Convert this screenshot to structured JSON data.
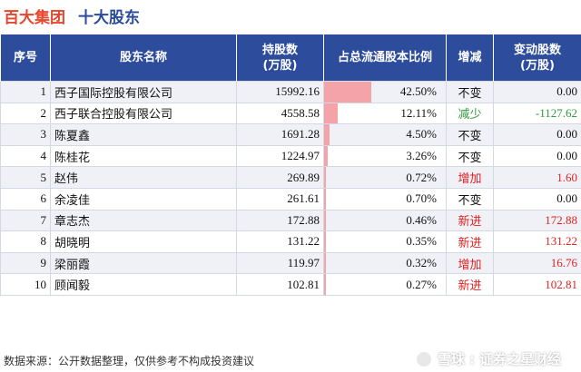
{
  "header": {
    "company": "百大集团",
    "subtitle": "十大股东"
  },
  "table": {
    "columns": [
      "序号",
      "股东名称",
      "持股数\n(万股)",
      "占总流通股本比例",
      "增减",
      "变动股数\n(万股)"
    ],
    "rows": [
      {
        "rank": "1",
        "name": "西子国际控股有限公司",
        "holding": "15992.16",
        "ratio": "42.50%",
        "ratio_value": 42.5,
        "change": "不变",
        "change_color": "#111111",
        "delta": "0.00",
        "delta_color": "#111111"
      },
      {
        "rank": "2",
        "name": "西子联合控股有限公司",
        "holding": "4558.58",
        "ratio": "12.11%",
        "ratio_value": 12.11,
        "change": "减少",
        "change_color": "#2f9a3a",
        "delta": "-1127.62",
        "delta_color": "#2f9a3a"
      },
      {
        "rank": "3",
        "name": "陈夏鑫",
        "holding": "1691.28",
        "ratio": "4.50%",
        "ratio_value": 4.5,
        "change": "不变",
        "change_color": "#111111",
        "delta": "0.00",
        "delta_color": "#111111"
      },
      {
        "rank": "4",
        "name": "陈桂花",
        "holding": "1224.97",
        "ratio": "3.26%",
        "ratio_value": 3.26,
        "change": "不变",
        "change_color": "#111111",
        "delta": "0.00",
        "delta_color": "#111111"
      },
      {
        "rank": "5",
        "name": "赵伟",
        "holding": "269.89",
        "ratio": "0.72%",
        "ratio_value": 0.72,
        "change": "增加",
        "change_color": "#e02020",
        "delta": "1.60",
        "delta_color": "#e02020"
      },
      {
        "rank": "6",
        "name": "余凌佳",
        "holding": "261.61",
        "ratio": "0.70%",
        "ratio_value": 0.7,
        "change": "不变",
        "change_color": "#111111",
        "delta": "0.00",
        "delta_color": "#111111"
      },
      {
        "rank": "7",
        "name": "章志杰",
        "holding": "172.88",
        "ratio": "0.46%",
        "ratio_value": 0.46,
        "change": "新进",
        "change_color": "#e02020",
        "delta": "172.88",
        "delta_color": "#e02020"
      },
      {
        "rank": "8",
        "name": "胡晓明",
        "holding": "131.22",
        "ratio": "0.35%",
        "ratio_value": 0.35,
        "change": "新进",
        "change_color": "#e02020",
        "delta": "131.22",
        "delta_color": "#e02020"
      },
      {
        "rank": "9",
        "name": "梁丽霞",
        "holding": "119.97",
        "ratio": "0.32%",
        "ratio_value": 0.32,
        "change": "增加",
        "change_color": "#e02020",
        "delta": "16.76",
        "delta_color": "#e02020"
      },
      {
        "rank": "10",
        "name": "顾闻毅",
        "holding": "102.81",
        "ratio": "0.27%",
        "ratio_value": 0.27,
        "change": "新进",
        "change_color": "#e02020",
        "delta": "102.81",
        "delta_color": "#e02020"
      }
    ]
  },
  "footer": {
    "source": "数据来源：公开数据整理，仅供参考不构成投资建议"
  },
  "logo": {
    "icon": "snowball-logo-icon",
    "brand": "雪球",
    "separator": ":",
    "account": "证券之星财经"
  },
  "colors": {
    "header_bg": "#2e4c9c",
    "title_red": "#e8462c",
    "title_blue": "#2a4a9c",
    "ratio_bar": "#f4a3a8",
    "row_alt": "#eff1f6"
  }
}
